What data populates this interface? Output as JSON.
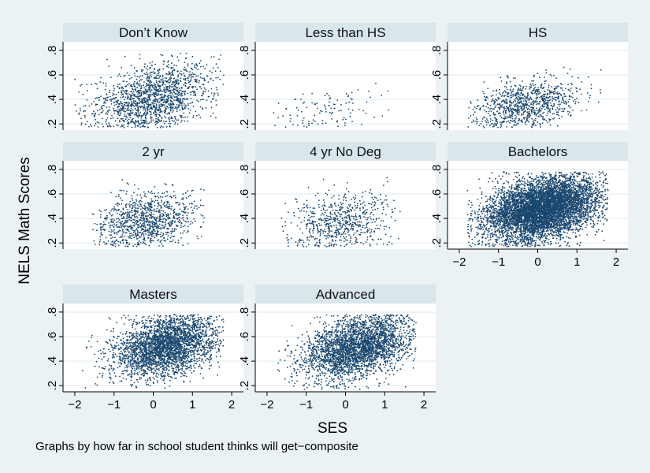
{
  "chart_data": {
    "type": "scatter",
    "xlabel": "SES",
    "ylabel": "NELS Math Scores",
    "note": "Graphs by how far in school student thinks will get−composite",
    "x_ticks": [
      -2,
      -1,
      0,
      1,
      2
    ],
    "x_tick_labels": [
      "−2",
      "−1",
      "0",
      "1",
      "2"
    ],
    "y_ticks": [
      0.2,
      0.4,
      0.6,
      0.8
    ],
    "y_tick_labels": [
      ".2",
      ".4",
      ".6",
      ".8"
    ],
    "xlim": [
      -2.3,
      2.3
    ],
    "ylim": [
      0.15,
      0.87
    ],
    "grid": true,
    "marker_color": "#1a476f",
    "panels": [
      {
        "title": "Don’t Know",
        "n": 1500,
        "x_range": [
          -2.0,
          1.8
        ],
        "x_mean": 0.0,
        "x_sd": 0.75,
        "y_mean": 0.42,
        "y_sd": 0.13,
        "slope": 0.06
      },
      {
        "title": "Less than HS",
        "n": 110,
        "x_range": [
          -2.0,
          1.5
        ],
        "x_mean": -0.4,
        "x_sd": 0.75,
        "y_mean": 0.31,
        "y_sd": 0.1,
        "slope": 0.04
      },
      {
        "title": "HS",
        "n": 900,
        "x_range": [
          -1.8,
          1.7
        ],
        "x_mean": -0.3,
        "x_sd": 0.65,
        "y_mean": 0.36,
        "y_sd": 0.1,
        "slope": 0.05
      },
      {
        "title": "2 yr",
        "n": 1000,
        "x_range": [
          -1.6,
          1.3
        ],
        "x_mean": -0.2,
        "x_sd": 0.65,
        "y_mean": 0.39,
        "y_sd": 0.11,
        "slope": 0.04
      },
      {
        "title": "4 yr No Deg",
        "n": 650,
        "x_range": [
          -1.9,
          1.4
        ],
        "x_mean": -0.1,
        "x_sd": 0.7,
        "y_mean": 0.37,
        "y_sd": 0.11,
        "slope": 0.05
      },
      {
        "title": "Bachelors",
        "n": 6500,
        "x_range": [
          -1.8,
          1.8
        ],
        "x_mean": 0.1,
        "x_sd": 0.7,
        "y_mean": 0.48,
        "y_sd": 0.12,
        "slope": 0.06
      },
      {
        "title": "Masters",
        "n": 3000,
        "x_range": [
          -1.8,
          1.8
        ],
        "x_mean": 0.3,
        "x_sd": 0.65,
        "y_mean": 0.52,
        "y_sd": 0.12,
        "slope": 0.06
      },
      {
        "title": "Advanced",
        "n": 3000,
        "x_range": [
          -1.8,
          1.8
        ],
        "x_mean": 0.3,
        "x_sd": 0.7,
        "y_mean": 0.51,
        "y_sd": 0.12,
        "slope": 0.07
      }
    ]
  }
}
